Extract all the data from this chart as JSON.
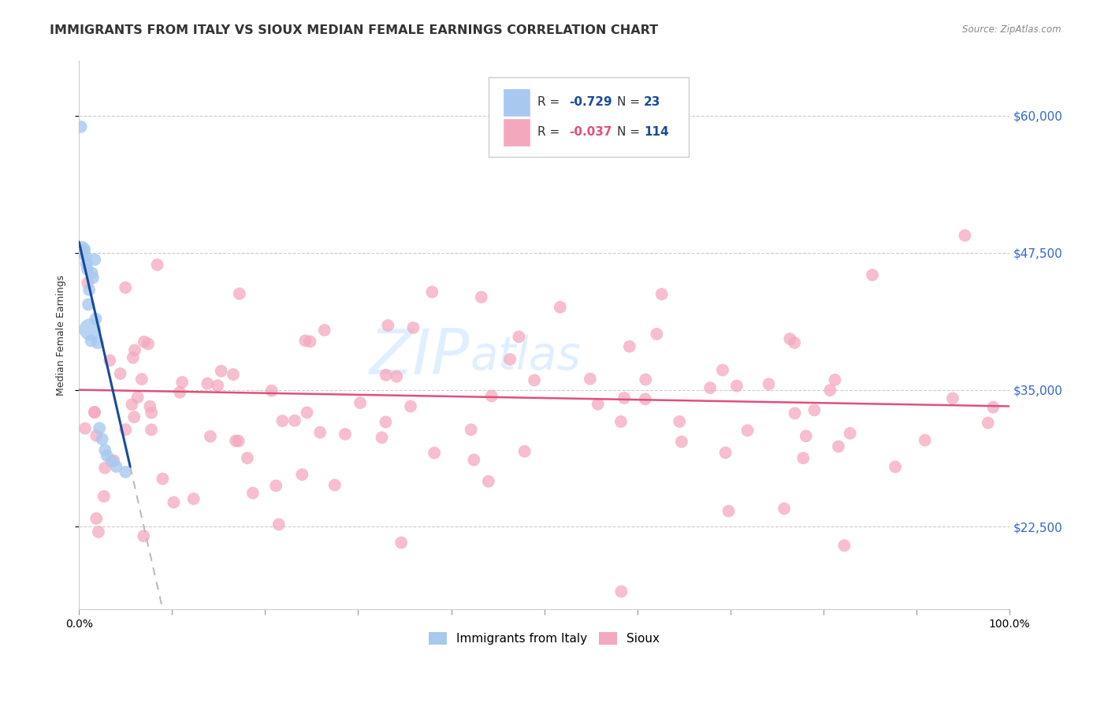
{
  "title": "IMMIGRANTS FROM ITALY VS SIOUX MEDIAN FEMALE EARNINGS CORRELATION CHART",
  "source": "Source: ZipAtlas.com",
  "ylabel": "Median Female Earnings",
  "xlim": [
    0.0,
    1.0
  ],
  "ylim": [
    15000,
    65000
  ],
  "yticks": [
    22500,
    35000,
    47500,
    60000
  ],
  "ytick_labels": [
    "$22,500",
    "$35,000",
    "$47,500",
    "$60,000"
  ],
  "watermark": "ZIPatlas",
  "italy_color": "#A8C8F0",
  "sioux_color": "#F4A8BE",
  "italy_line_color": "#1A4A9B",
  "sioux_line_color": "#E0507A",
  "italy_R": -0.729,
  "italy_N": 23,
  "sioux_R": -0.037,
  "sioux_N": 114,
  "background_color": "#FFFFFF",
  "grid_color": "#CCCCCC",
  "title_fontsize": 11.5,
  "axis_label_fontsize": 9,
  "tick_fontsize": 10,
  "legend_R_color_italy": "#1A4A9B",
  "legend_R_color_sioux": "#E0507A",
  "legend_N_color": "#1A4A9B"
}
